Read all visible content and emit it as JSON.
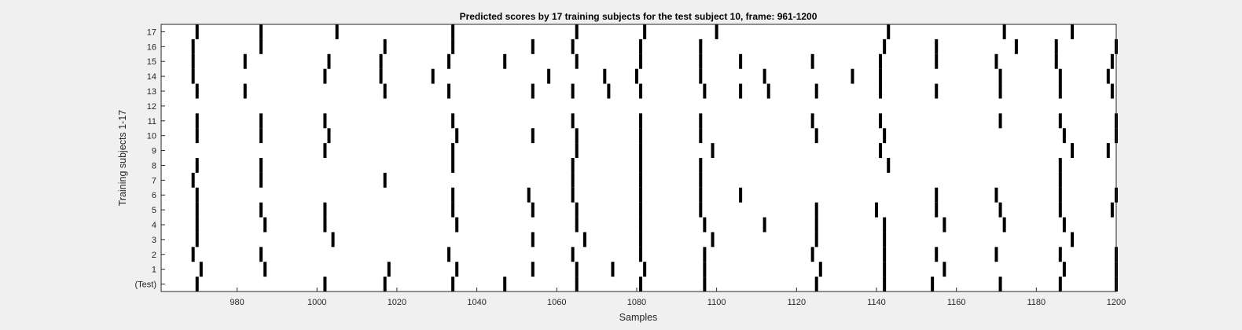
{
  "chart_data": {
    "type": "heatmap",
    "title": "Predicted scores by 17 training subjects for the test subject 10, frame: 961-1200",
    "xlabel": "Samples",
    "ylabel": "Training subjects 1-17",
    "xlim": [
      961,
      1200
    ],
    "xticks": [
      980,
      1000,
      1020,
      1040,
      1060,
      1080,
      1100,
      1120,
      1140,
      1160,
      1180,
      1200
    ],
    "rows": [
      "(Test)",
      "1",
      "2",
      "3",
      "4",
      "5",
      "6",
      "7",
      "8",
      "9",
      "10",
      "11",
      "12",
      "13",
      "14",
      "15",
      "16",
      "17"
    ],
    "grid": false,
    "colors": {
      "mark": "#000000",
      "plot_bg": "#ffffff",
      "figure_bg": "#f0f0f0"
    },
    "events": [
      {
        "row": "(Test)",
        "samples": [
          970,
          1002,
          1017,
          1034,
          1047,
          1065,
          1081,
          1097,
          1125,
          1142,
          1154,
          1171,
          1186,
          1200
        ]
      },
      {
        "row": "1",
        "samples": [
          971,
          987,
          1018,
          1035,
          1054,
          1065,
          1074,
          1082,
          1097,
          1126,
          1142,
          1157,
          1187,
          1200
        ]
      },
      {
        "row": "2",
        "samples": [
          969,
          986,
          1033,
          1064,
          1081,
          1097,
          1124,
          1142,
          1155,
          1170,
          1186,
          1200
        ]
      },
      {
        "row": "3",
        "samples": [
          970,
          1004,
          1054,
          1067,
          1081,
          1099,
          1125,
          1142,
          1189
        ]
      },
      {
        "row": "4",
        "samples": [
          970,
          987,
          1002,
          1035,
          1065,
          1081,
          1097,
          1112,
          1125,
          1142,
          1157,
          1172,
          1187
        ]
      },
      {
        "row": "5",
        "samples": [
          970,
          986,
          1002,
          1034,
          1054,
          1065,
          1081,
          1096,
          1125,
          1140,
          1155,
          1171,
          1186,
          1199
        ]
      },
      {
        "row": "6",
        "samples": [
          970,
          1034,
          1053,
          1064,
          1081,
          1096,
          1106,
          1155,
          1170,
          1186,
          1200
        ]
      },
      {
        "row": "7",
        "samples": [
          969,
          986,
          1017,
          1064,
          1081,
          1096,
          1186
        ]
      },
      {
        "row": "8",
        "samples": [
          970,
          986,
          1034,
          1064,
          1081,
          1096,
          1143,
          1186
        ]
      },
      {
        "row": "9",
        "samples": [
          1002,
          1034,
          1065,
          1081,
          1099,
          1141,
          1189,
          1198
        ]
      },
      {
        "row": "10",
        "samples": [
          970,
          986,
          1003,
          1035,
          1054,
          1065,
          1081,
          1096,
          1125,
          1142,
          1187,
          1200
        ]
      },
      {
        "row": "11",
        "samples": [
          970,
          986,
          1002,
          1034,
          1064,
          1081,
          1096,
          1124,
          1141,
          1171,
          1186,
          1200
        ]
      },
      {
        "row": "12",
        "samples": []
      },
      {
        "row": "13",
        "samples": [
          970,
          982,
          1017,
          1033,
          1054,
          1064,
          1073,
          1081,
          1097,
          1106,
          1113,
          1125,
          1141,
          1155,
          1171,
          1186,
          1199
        ]
      },
      {
        "row": "14",
        "samples": [
          969,
          1002,
          1016,
          1029,
          1058,
          1072,
          1080,
          1096,
          1112,
          1134,
          1141,
          1171,
          1186,
          1198
        ]
      },
      {
        "row": "15",
        "samples": [
          969,
          982,
          1003,
          1016,
          1033,
          1047,
          1065,
          1081,
          1096,
          1106,
          1124,
          1141,
          1155,
          1170,
          1185,
          1199
        ]
      },
      {
        "row": "16",
        "samples": [
          969,
          986,
          1017,
          1034,
          1054,
          1064,
          1081,
          1096,
          1142,
          1155,
          1175,
          1185,
          1200
        ]
      },
      {
        "row": "17",
        "samples": [
          970,
          986,
          1005,
          1034,
          1065,
          1082,
          1100,
          1143,
          1172,
          1189
        ]
      }
    ]
  }
}
